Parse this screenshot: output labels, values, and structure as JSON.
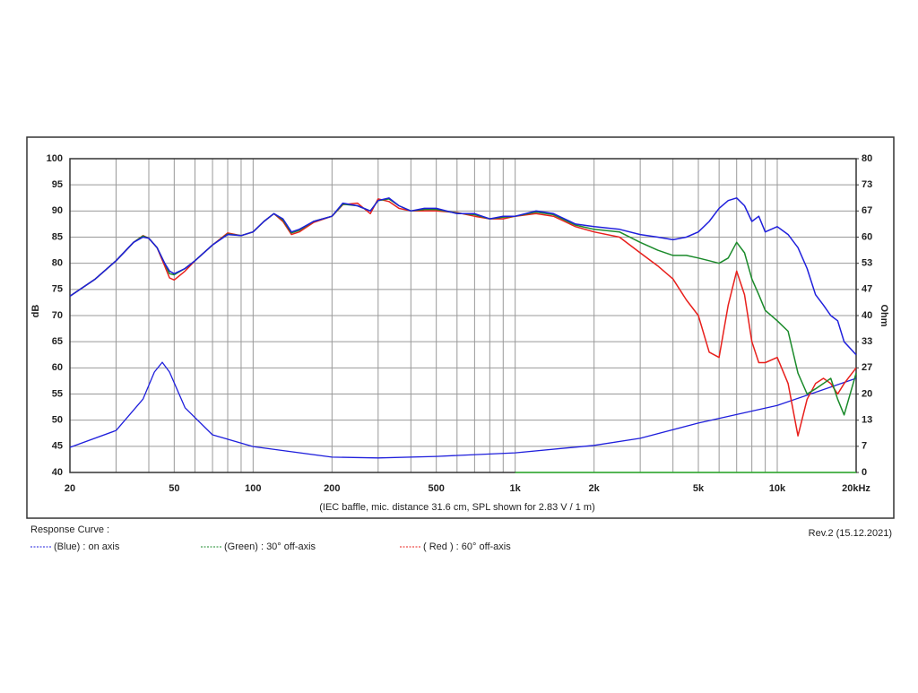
{
  "chart_data": {
    "type": "line",
    "ylabel": "dB",
    "y2label": "Ohm",
    "caption": "(IEC baffle, mic. distance 31.6 cm, SPL shown for 2.83 V / 1 m)",
    "legend_title": "Response Curve :",
    "revision": "Rev.2 (15.12.2021)",
    "xscale": "log",
    "grid": true,
    "xlim": [
      20,
      20000
    ],
    "xticks": [
      20,
      50,
      100,
      200,
      500,
      {
        "value": 1000,
        "label": "1k"
      },
      {
        "value": 2000,
        "label": "2k"
      },
      {
        "value": 5000,
        "label": "5k"
      },
      {
        "value": 10000,
        "label": "10k"
      },
      {
        "value": 20000,
        "label": "20kHz"
      }
    ],
    "xminor": [
      30,
      40,
      60,
      70,
      80,
      90,
      300,
      400,
      600,
      700,
      800,
      900,
      3000,
      4000,
      6000,
      7000,
      8000,
      9000
    ],
    "ylim": [
      40,
      100
    ],
    "yticks": [
      40,
      45,
      50,
      55,
      60,
      65,
      70,
      75,
      80,
      85,
      90,
      95,
      100
    ],
    "y2lim": [
      0,
      80
    ],
    "y2ticks": [
      0,
      {
        "value": 6.667,
        "label": "7"
      },
      {
        "value": 13.333,
        "label": "13"
      },
      20,
      {
        "value": 26.667,
        "label": "27"
      },
      {
        "value": 33.333,
        "label": "33"
      },
      40,
      {
        "value": 46.667,
        "label": "47"
      },
      {
        "value": 53.333,
        "label": "53"
      },
      60,
      {
        "value": 66.667,
        "label": "67"
      },
      {
        "value": 73.333,
        "label": "73"
      },
      80
    ],
    "x": [
      20,
      25,
      30,
      35,
      38,
      40,
      43,
      46,
      48,
      50,
      55,
      60,
      70,
      80,
      90,
      100,
      110,
      120,
      130,
      140,
      150,
      170,
      200,
      220,
      250,
      280,
      300,
      330,
      360,
      400,
      450,
      500,
      600,
      700,
      800,
      900,
      1000,
      1200,
      1400,
      1700,
      2000,
      2500,
      3000,
      3500,
      4000,
      4500,
      5000,
      5500,
      6000,
      6500,
      7000,
      7500,
      8000,
      8500,
      9000,
      10000,
      11000,
      12000,
      13000,
      14000,
      15000,
      16000,
      17000,
      18000,
      20000
    ],
    "series": [
      {
        "name": "(Blue)  : on axis",
        "color": "#1f1fdc",
        "values": [
          73.7,
          77,
          80.5,
          84,
          85,
          84.8,
          83,
          80,
          78.5,
          78,
          79,
          80.5,
          83.5,
          85.5,
          85.3,
          86,
          88,
          89.5,
          88.5,
          86,
          86.5,
          88,
          89,
          91.5,
          91,
          90,
          92,
          92.5,
          91,
          90,
          90.5,
          90.5,
          89.5,
          89.5,
          88.5,
          89,
          89,
          90,
          89.5,
          87.5,
          87,
          86.5,
          85.5,
          85,
          84.5,
          85,
          86,
          88,
          90.5,
          92,
          92.5,
          91,
          88,
          89,
          86,
          87,
          85.5,
          83,
          79,
          74,
          72,
          70,
          69,
          65,
          62.5
        ]
      },
      {
        "name": "(Green) : 30° off-axis",
        "color": "#1a8a2a",
        "values": [
          73.7,
          77,
          80.5,
          84,
          85.2,
          84.8,
          83,
          80,
          78,
          77.8,
          79,
          80.5,
          83.5,
          85.6,
          85.3,
          86,
          88,
          89.5,
          88.3,
          85.8,
          86.3,
          88,
          89,
          91.3,
          91,
          90,
          92,
          92.3,
          91,
          90,
          90.3,
          90.3,
          89.6,
          89.3,
          88.5,
          88.8,
          89,
          89.8,
          89.3,
          87.3,
          86.5,
          86,
          84,
          82.5,
          81.5,
          81.5,
          81,
          80.5,
          80,
          81,
          84,
          82,
          77,
          74,
          71,
          69,
          67,
          59,
          55,
          56,
          57,
          58,
          54,
          51,
          59
        ]
      },
      {
        "name": "( Red ) : 60° off-axis",
        "color": "#e8201c",
        "values": [
          73.7,
          77,
          80.5,
          84,
          85.3,
          84.8,
          83,
          79.5,
          77.2,
          76.8,
          78.5,
          80.5,
          83.5,
          85.8,
          85.3,
          86,
          88,
          89.5,
          88,
          85.5,
          86,
          87.8,
          89,
          91.2,
          91.5,
          89.5,
          92.3,
          91.8,
          90.5,
          90,
          90,
          90,
          89.7,
          89,
          88.5,
          88.5,
          89,
          89.5,
          89,
          87,
          86,
          85,
          82,
          79.5,
          77,
          73,
          70,
          63,
          62,
          72,
          78.5,
          74,
          65,
          61,
          61,
          62,
          57,
          47,
          54,
          57,
          58,
          57,
          55,
          57,
          60
        ]
      }
    ],
    "impedance": [
      {
        "color": "#1f1fdc",
        "axis": "y2",
        "x": [
          20,
          30,
          38,
          42,
          45,
          48,
          55,
          70,
          100,
          200,
          300,
          500,
          1000,
          2000,
          3000,
          5000,
          10000,
          20000
        ],
        "values": [
          6.4,
          10.7,
          18.7,
          25.6,
          28.1,
          25.6,
          16.5,
          9.6,
          6.6,
          3.9,
          3.7,
          4.1,
          5,
          6.9,
          8.7,
          12.6,
          17.1,
          24
        ]
      },
      {
        "color": "#2ec82e",
        "axis": "y2",
        "x": [
          1000,
          20000
        ],
        "values": [
          0,
          0
        ]
      }
    ]
  }
}
